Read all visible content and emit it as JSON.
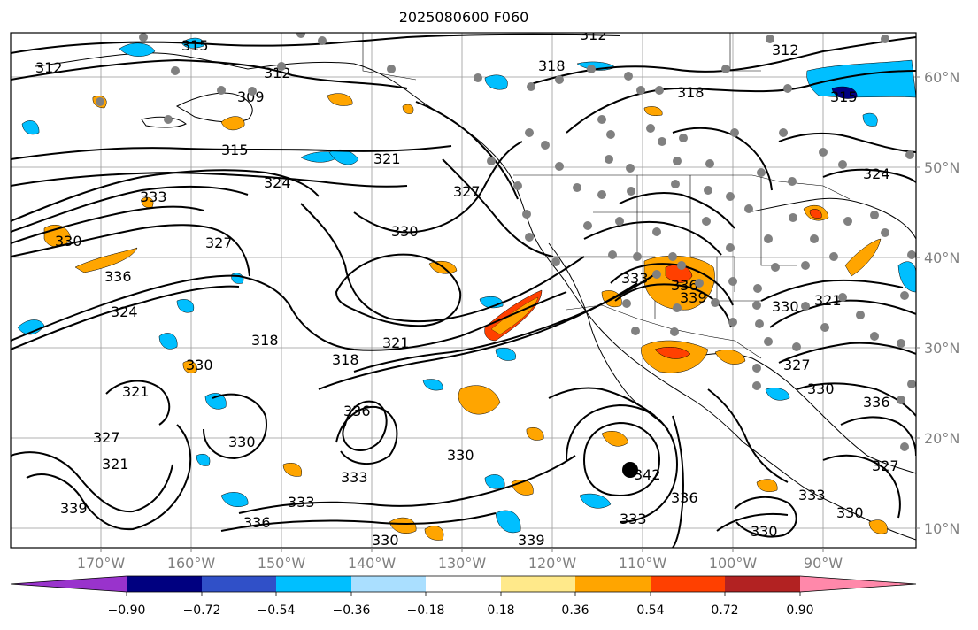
{
  "title": "2025080600 F060",
  "lat_labels": [
    "60°N",
    "50°N",
    "40°N",
    "30°N",
    "20°N",
    "10°N"
  ],
  "lon_labels": [
    "170°W",
    "160°W",
    "150°W",
    "140°W",
    "130°W",
    "120°W",
    "110°W",
    "100°W",
    "90°W"
  ],
  "colorbar": {
    "ticks": [
      "−0.90",
      "−0.72",
      "−0.54",
      "−0.36",
      "−0.18",
      "0.18",
      "0.36",
      "0.54",
      "0.72",
      "0.90"
    ],
    "colors": [
      "#9933cc",
      "#000080",
      "#3050c8",
      "#00bfff",
      "#aadfff",
      "#ffffff",
      "#ffe98a",
      "#ffa500",
      "#ff4000",
      "#b22222",
      "#ff88aa"
    ]
  },
  "contour_labels": [
    {
      "text": "312"
    },
    {
      "text": "315"
    },
    {
      "text": "312"
    },
    {
      "text": "318"
    },
    {
      "text": "312"
    },
    {
      "text": "312"
    },
    {
      "text": "309"
    },
    {
      "text": "318"
    },
    {
      "text": "315"
    },
    {
      "text": "315"
    },
    {
      "text": "321"
    },
    {
      "text": "324"
    },
    {
      "text": "324"
    },
    {
      "text": "333"
    },
    {
      "text": "330"
    },
    {
      "text": "336"
    },
    {
      "text": "327"
    },
    {
      "text": "330"
    },
    {
      "text": "324"
    },
    {
      "text": "318"
    },
    {
      "text": "321"
    },
    {
      "text": "318"
    },
    {
      "text": "330"
    },
    {
      "text": "327"
    },
    {
      "text": "321"
    },
    {
      "text": "336"
    },
    {
      "text": "330"
    },
    {
      "text": "333"
    },
    {
      "text": "333"
    },
    {
      "text": "336"
    },
    {
      "text": "330"
    },
    {
      "text": "339"
    },
    {
      "text": "333"
    },
    {
      "text": "336"
    },
    {
      "text": "339"
    },
    {
      "text": "342"
    },
    {
      "text": "336"
    },
    {
      "text": "333"
    },
    {
      "text": "330"
    },
    {
      "text": "336"
    },
    {
      "text": "327"
    },
    {
      "text": "330"
    },
    {
      "text": "321"
    },
    {
      "text": "330"
    },
    {
      "text": "327"
    },
    {
      "text": "333"
    },
    {
      "text": "339"
    },
    {
      "text": "327"
    },
    {
      "text": "321"
    }
  ]
}
